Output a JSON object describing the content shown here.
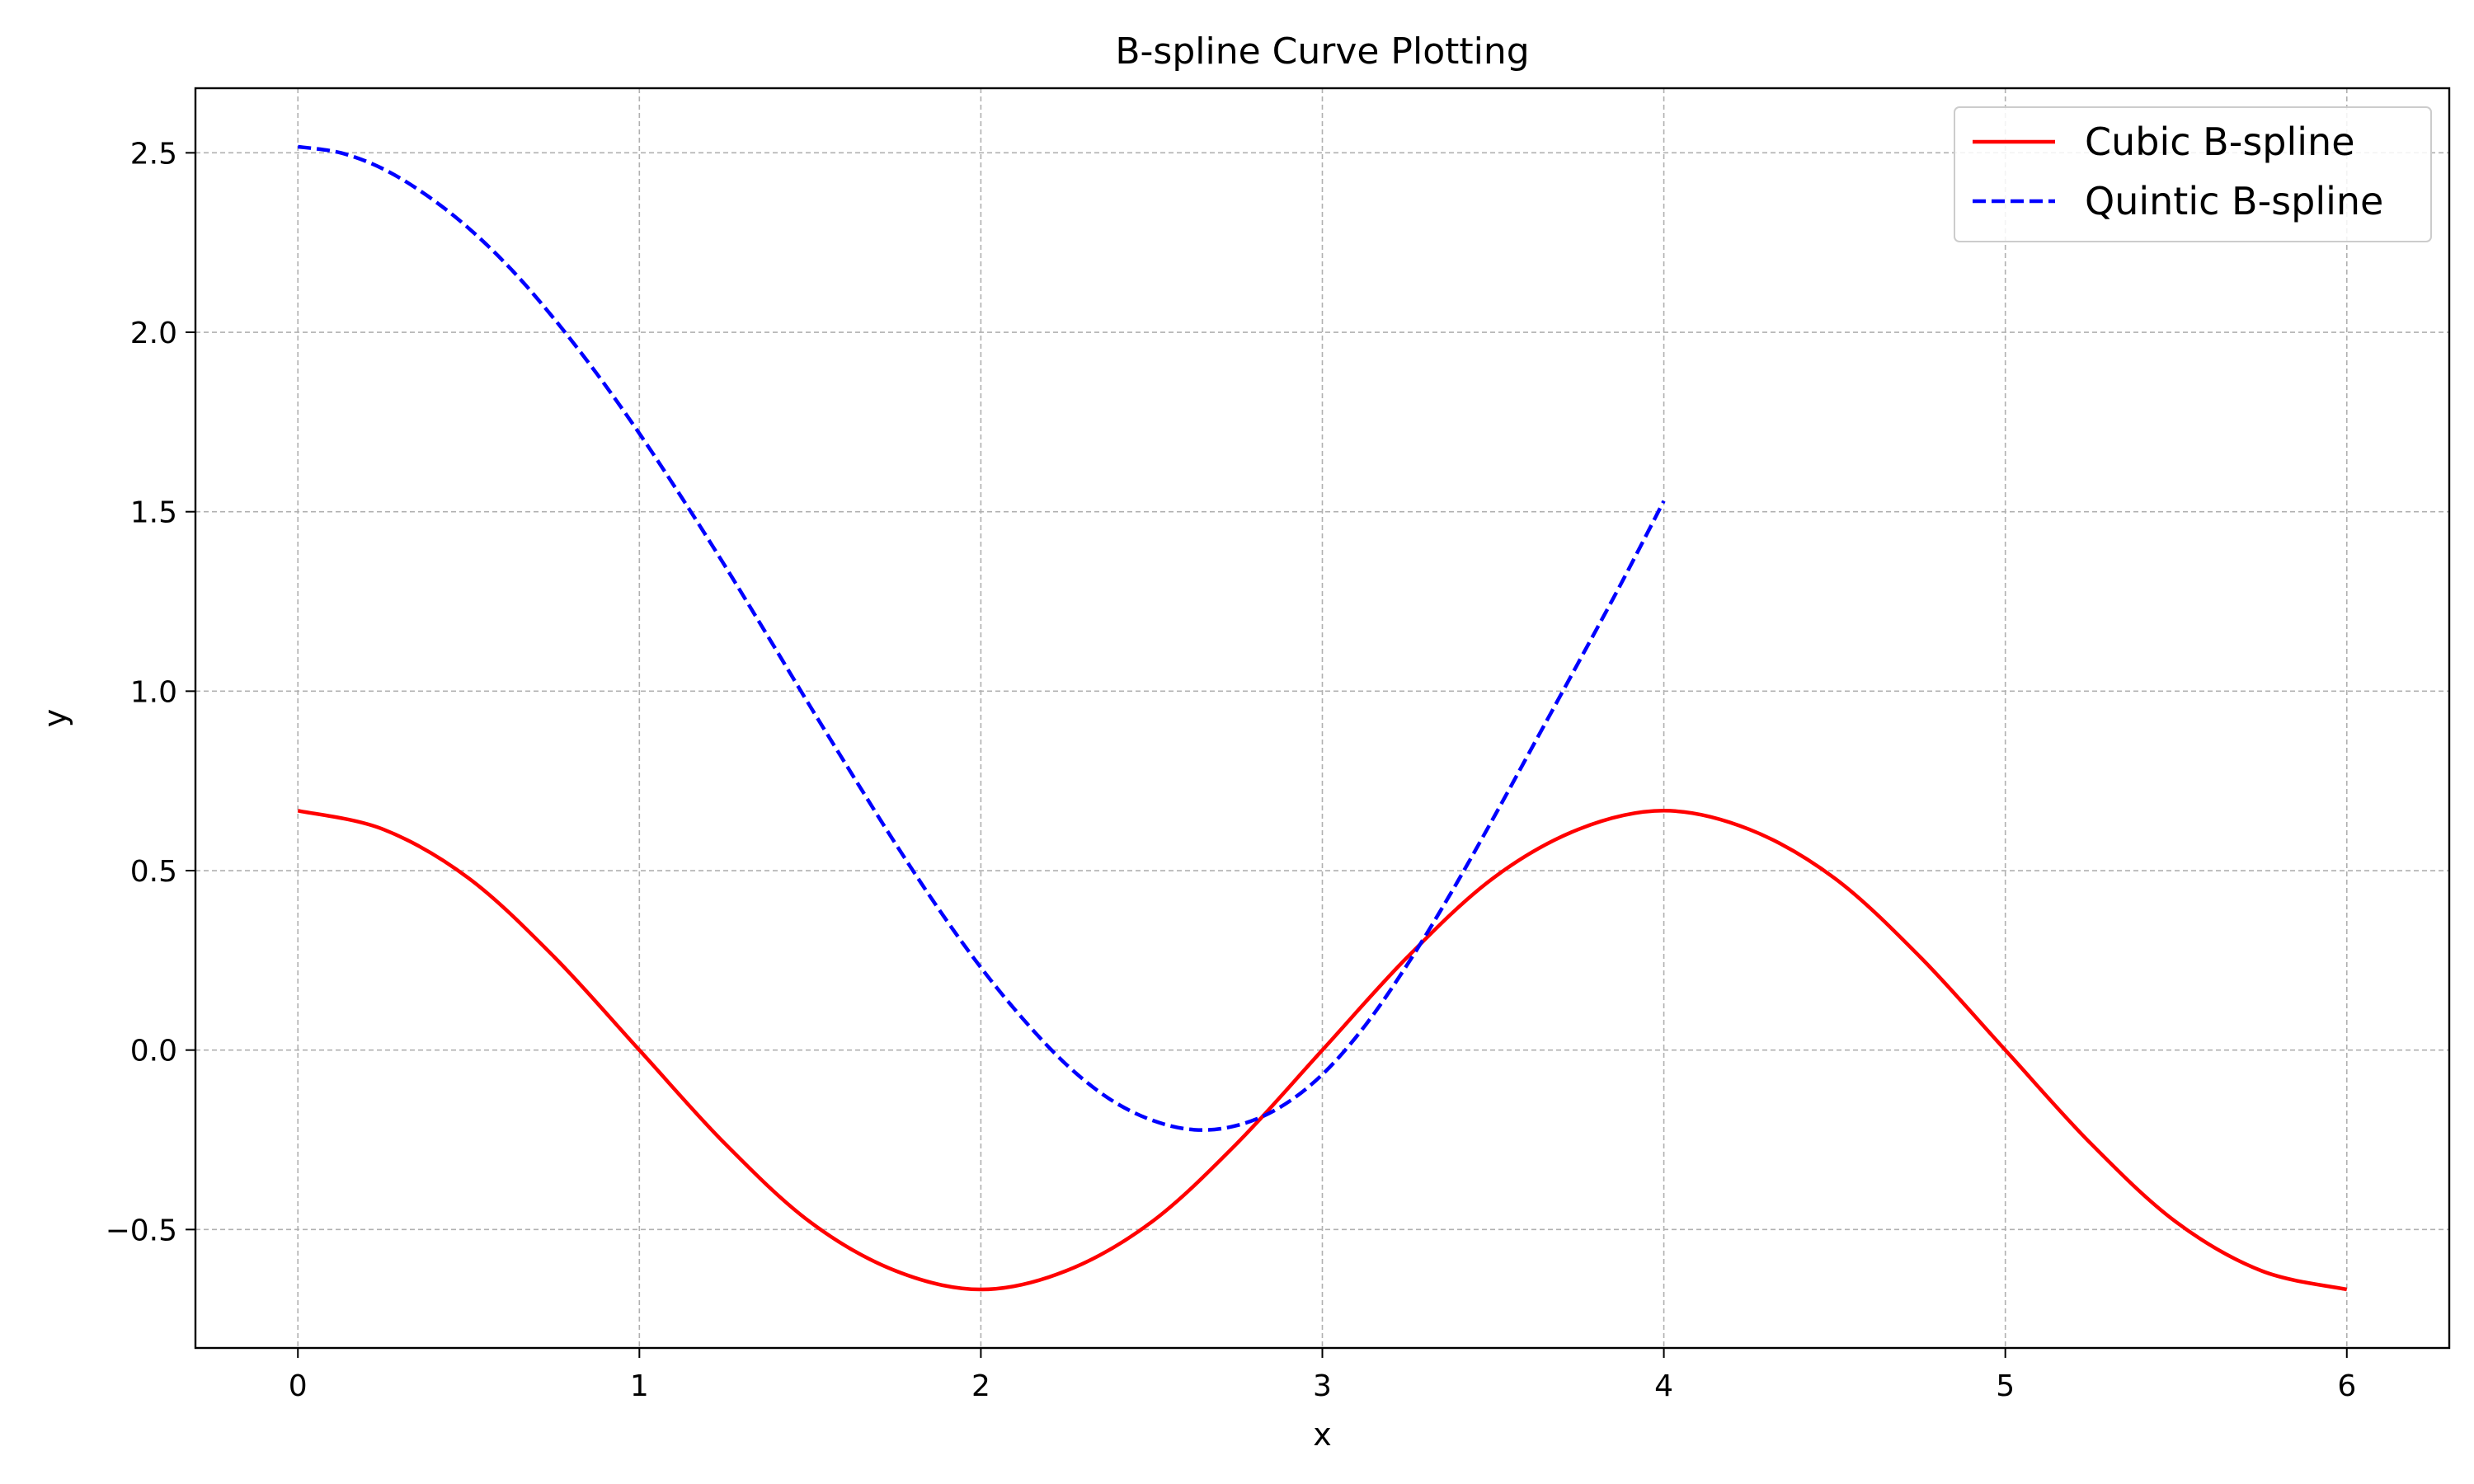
{
  "chart_data": {
    "type": "line",
    "title": "B-spline Curve Plotting",
    "xlabel": "x",
    "ylabel": "y",
    "xlim": [
      -0.3,
      6.3
    ],
    "ylim": [
      -0.83,
      2.68
    ],
    "xticks": [
      0,
      1,
      2,
      3,
      4,
      5,
      6
    ],
    "xtick_labels": [
      "0",
      "1",
      "2",
      "3",
      "4",
      "5",
      "6"
    ],
    "yticks": [
      -0.5,
      0.0,
      0.5,
      1.0,
      1.5,
      2.0,
      2.5
    ],
    "ytick_labels": [
      "−0.5",
      "0.0",
      "0.5",
      "1.0",
      "1.5",
      "2.0",
      "2.5"
    ],
    "grid": true,
    "legend_position": "top-right",
    "series": [
      {
        "name": "Cubic B-spline",
        "color": "#ff0000",
        "line_style": "solid",
        "x": [
          0,
          0.25,
          0.5,
          0.75,
          1.0,
          1.25,
          1.5,
          1.75,
          2.0,
          2.25,
          2.5,
          2.75,
          3.0,
          3.25,
          3.5,
          3.75,
          4.0,
          4.25,
          4.5,
          4.75,
          5.0,
          5.25,
          5.5,
          5.75,
          6.0
        ],
        "y": [
          0.667,
          0.615,
          0.479,
          0.26,
          0.0,
          -0.26,
          -0.479,
          -0.615,
          -0.667,
          -0.615,
          -0.479,
          -0.26,
          0.0,
          0.26,
          0.479,
          0.615,
          0.667,
          0.615,
          0.479,
          0.26,
          0.0,
          -0.26,
          -0.479,
          -0.615,
          -0.667
        ]
      },
      {
        "name": "Quintic B-spline",
        "color": "#0000ff",
        "line_style": "dashed",
        "x": [
          0,
          0.125,
          0.25,
          0.375,
          0.5,
          0.625,
          0.75,
          0.875,
          1.0,
          1.125,
          1.25,
          1.375,
          1.5,
          1.625,
          1.75,
          1.875,
          2.0,
          2.125,
          2.25,
          2.375,
          2.5,
          2.625,
          2.75,
          2.875,
          3.0,
          3.125,
          3.25,
          3.375,
          3.5,
          3.625,
          3.75,
          3.875,
          4.0
        ],
        "y": [
          2.517,
          2.5,
          2.455,
          2.383,
          2.29,
          2.175,
          2.038,
          1.885,
          1.718,
          1.538,
          1.35,
          1.155,
          0.958,
          0.765,
          0.575,
          0.395,
          0.23,
          0.085,
          -0.04,
          -0.135,
          -0.195,
          -0.222,
          -0.21,
          -0.16,
          -0.068,
          0.068,
          0.24,
          0.435,
          0.645,
          0.862,
          1.08,
          1.3,
          1.53
        ]
      }
    ]
  }
}
